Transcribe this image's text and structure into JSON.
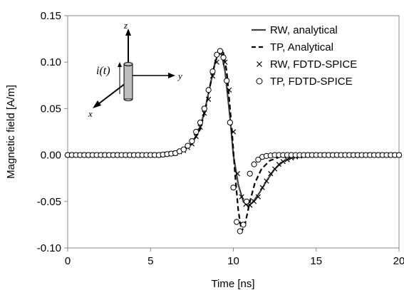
{
  "chart_data": {
    "type": "line",
    "xlabel": "Time [ns]",
    "ylabel": "Magnetic field [A/m]",
    "xlim": [
      0,
      20
    ],
    "ylim": [
      -0.1,
      0.15
    ],
    "xticks": [
      0,
      5,
      10,
      15,
      20
    ],
    "xtick_labels": [
      "0",
      "5",
      "10",
      "15",
      "20"
    ],
    "yticks": [
      -0.1,
      -0.05,
      0,
      0.05,
      0.1,
      0.15
    ],
    "ytick_labels": [
      "-0.10",
      "-0.05",
      "0.00",
      "0.05",
      "0.10",
      "0.15"
    ],
    "grid": false,
    "legend_position": "top-right",
    "series": [
      {
        "name": "RW, analytical",
        "style": "solid-line",
        "x": [
          0,
          5.5,
          6.5,
          7.0,
          7.5,
          8.0,
          8.3,
          8.6,
          8.9,
          9.1,
          9.3,
          9.5,
          9.8,
          10.0,
          10.3,
          10.6,
          10.9,
          11.2,
          11.6,
          12.0,
          12.5,
          13.0,
          13.5,
          14.0,
          15.0,
          20.0
        ],
        "y": [
          0,
          0,
          0.002,
          0.005,
          0.012,
          0.03,
          0.05,
          0.075,
          0.1,
          0.11,
          0.108,
          0.09,
          0.04,
          0.0,
          -0.032,
          -0.05,
          -0.055,
          -0.05,
          -0.04,
          -0.028,
          -0.015,
          -0.007,
          -0.003,
          -0.001,
          0,
          0
        ]
      },
      {
        "name": "TP, Analytical",
        "style": "dashed-line",
        "x": [
          0,
          5.5,
          6.5,
          7.0,
          7.5,
          8.0,
          8.3,
          8.6,
          8.9,
          9.2,
          9.4,
          9.6,
          9.9,
          10.1,
          10.3,
          10.5,
          10.7,
          11.0,
          11.3,
          11.7,
          12.2,
          12.8,
          13.5,
          15.0,
          20.0
        ],
        "y": [
          0,
          0,
          0.002,
          0.005,
          0.012,
          0.028,
          0.048,
          0.075,
          0.1,
          0.113,
          0.11,
          0.09,
          0.03,
          -0.02,
          -0.06,
          -0.082,
          -0.075,
          -0.05,
          -0.03,
          -0.015,
          -0.006,
          -0.002,
          0,
          0,
          0
        ]
      },
      {
        "name": "RW, FDTD-SPICE",
        "style": "x-markers",
        "x": [
          0,
          0.25,
          0.5,
          0.75,
          1.0,
          1.25,
          1.5,
          1.75,
          2.0,
          2.25,
          2.5,
          2.75,
          3.0,
          3.25,
          3.5,
          3.75,
          4.0,
          4.25,
          4.5,
          4.75,
          5.0,
          5.25,
          5.5,
          5.75,
          6.0,
          6.25,
          6.5,
          6.75,
          7.0,
          7.25,
          7.5,
          7.75,
          8.0,
          8.25,
          8.5,
          8.75,
          9.0,
          9.25,
          9.5,
          9.75,
          10.0,
          10.25,
          10.5,
          10.75,
          11.0,
          11.25,
          11.5,
          11.75,
          12.0,
          12.25,
          12.5,
          12.75,
          13.0,
          13.25,
          13.5,
          13.75,
          14.0,
          14.25,
          14.5,
          14.75,
          15.0,
          15.25,
          15.5,
          15.75,
          16.0,
          16.25,
          16.5,
          16.75,
          17.0,
          17.25,
          17.5,
          17.75,
          18.0,
          18.25,
          18.5,
          18.75,
          19.0,
          19.25,
          19.5,
          19.75,
          20.0
        ],
        "y": [
          0,
          0,
          0,
          0,
          0,
          0,
          0,
          0,
          0,
          0,
          0,
          0,
          0,
          0,
          0,
          0,
          0,
          0,
          0,
          0,
          0,
          0,
          0,
          0.0005,
          0.001,
          0.0015,
          0.002,
          0.0035,
          0.005,
          0.008,
          0.012,
          0.02,
          0.03,
          0.045,
          0.06,
          0.085,
          0.1,
          0.11,
          0.1,
          0.07,
          0.025,
          -0.02,
          -0.045,
          -0.053,
          -0.054,
          -0.05,
          -0.045,
          -0.035,
          -0.028,
          -0.02,
          -0.015,
          -0.01,
          -0.007,
          -0.005,
          -0.003,
          -0.002,
          -0.001,
          -0.0005,
          0,
          0,
          0,
          0,
          0,
          0,
          0,
          0,
          0,
          0,
          0,
          0,
          0,
          0,
          0,
          0,
          0,
          0,
          0,
          0,
          0,
          0,
          0
        ]
      },
      {
        "name": "TP, FDTD-SPICE",
        "style": "circle-markers",
        "x": [
          0,
          0.25,
          0.5,
          0.75,
          1.0,
          1.25,
          1.5,
          1.75,
          2.0,
          2.25,
          2.5,
          2.75,
          3.0,
          3.25,
          3.5,
          3.75,
          4.0,
          4.25,
          4.5,
          4.75,
          5.0,
          5.25,
          5.5,
          5.75,
          6.0,
          6.25,
          6.5,
          6.75,
          7.0,
          7.25,
          7.5,
          7.75,
          8.0,
          8.25,
          8.5,
          8.75,
          9.0,
          9.2,
          9.4,
          9.6,
          9.8,
          10.0,
          10.2,
          10.4,
          10.6,
          10.8,
          11.0,
          11.25,
          11.5,
          11.75,
          12.0,
          12.25,
          12.5,
          12.75,
          13.0,
          13.25,
          13.5,
          13.75,
          14.0,
          14.25,
          14.5,
          14.75,
          15.0,
          15.25,
          15.5,
          15.75,
          16.0,
          16.25,
          16.5,
          16.75,
          17.0,
          17.25,
          17.5,
          17.75,
          18.0,
          18.25,
          18.5,
          18.75,
          19.0,
          19.25,
          19.5,
          19.75,
          20.0
        ],
        "y": [
          0,
          0,
          0,
          0,
          0,
          0,
          0,
          0,
          0,
          0,
          0,
          0,
          0,
          0,
          0,
          0,
          0,
          0,
          0,
          0,
          0,
          0,
          0,
          0.0005,
          0.001,
          0.0015,
          0.002,
          0.004,
          0.006,
          0.01,
          0.015,
          0.025,
          0.035,
          0.05,
          0.07,
          0.09,
          0.108,
          0.112,
          0.105,
          0.08,
          0.035,
          -0.035,
          -0.072,
          -0.082,
          -0.075,
          -0.05,
          -0.02,
          -0.01,
          -0.005,
          -0.002,
          -0.001,
          -0.0005,
          0,
          0,
          0,
          0,
          0,
          0,
          0,
          0,
          0,
          0,
          0,
          0,
          0,
          0,
          0,
          0,
          0,
          0,
          0,
          0,
          0,
          0,
          0,
          0,
          0,
          0,
          0,
          0,
          0,
          0,
          0
        ]
      }
    ]
  },
  "inset": {
    "z_label": "z",
    "y_label": "y",
    "x_label": "x",
    "current_label": "i(t)"
  }
}
